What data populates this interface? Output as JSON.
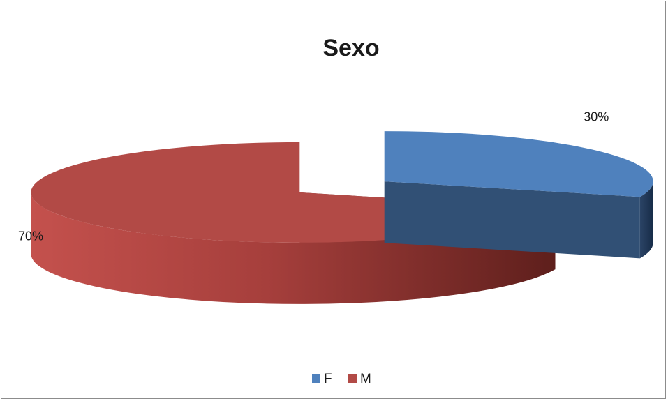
{
  "chart_data": {
    "type": "pie",
    "title": "Sexo",
    "categories": [
      "F",
      "M"
    ],
    "values": [
      30,
      70
    ],
    "data_labels": [
      "30%",
      "70%"
    ],
    "colors": [
      "#4f81bd",
      "#b24a46"
    ],
    "legend_position": "bottom",
    "style": "3d-exploded"
  }
}
